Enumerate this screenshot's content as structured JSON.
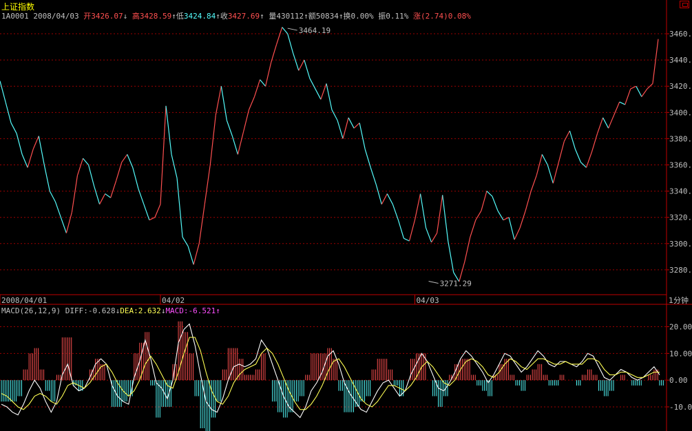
{
  "header": {
    "title": "上证指数",
    "code": "1A0001",
    "date": "2008/04/03",
    "open_label": "开",
    "open": "3426.07",
    "high_label": "高",
    "high": "3428.59",
    "low_label": "低",
    "low": "3424.84",
    "close_label": "收",
    "close": "3427.69",
    "vol_label": "量",
    "vol": "430112",
    "amt_label": "额",
    "amt": "50834",
    "turn_label": "换",
    "turn": "0.00%",
    "amp_label": "振",
    "amp": "0.11%",
    "chg_label": "涨",
    "chg": "(2.74)0.08%",
    "arrow_up": "↑",
    "arrow_down": "↓"
  },
  "period_button": "1分钟",
  "macd_header": {
    "label": "MACD(26,12,9)",
    "diff": "DIFF:-0.628",
    "diff_arrow": "↓",
    "dea": "DEA:2.632",
    "dea_arrow": "↓",
    "macd": "MACD:-6.521",
    "macd_arrow": "↑"
  },
  "colors": {
    "background": "#000000",
    "border": "#c00000",
    "grid": "#a00000",
    "up": "#ff5050",
    "down": "#54fcfc",
    "diff": "#ffffff",
    "dea": "#ffff54",
    "label": "#c0c0c0",
    "macd_label": "#ff50ff"
  },
  "chart_data": [
    {
      "type": "line",
      "title": "上证指数",
      "ylim": [
        3260,
        3470
      ],
      "y_ticks": [
        "3460.00",
        "3440.00",
        "3420.00",
        "3400.00",
        "3380.00",
        "3360.00",
        "3340.00",
        "3320.00",
        "3300.00",
        "3280.00"
      ],
      "y_tick_values": [
        3460,
        3440,
        3420,
        3400,
        3380,
        3360,
        3340,
        3320,
        3300,
        3280
      ],
      "x_labels": [
        "2008/04/01",
        "04/02",
        "04/03"
      ],
      "x_label_positions": [
        0,
        58,
        150
      ],
      "annotations": [
        {
          "text": "3464.19",
          "x": 104,
          "y": 3464.19
        },
        {
          "text": "3271.29",
          "x": 155,
          "y": 3271.29
        }
      ],
      "grid": true,
      "x": [
        0,
        2,
        4,
        6,
        8,
        10,
        12,
        14,
        16,
        18,
        20,
        22,
        24,
        26,
        28,
        30,
        32,
        34,
        36,
        38,
        40,
        42,
        44,
        46,
        48,
        50,
        52,
        54,
        56,
        58,
        60,
        62,
        64,
        66,
        68,
        70,
        72,
        74,
        76,
        78,
        80,
        82,
        84,
        86,
        88,
        90,
        92,
        94,
        96,
        98,
        100,
        102,
        104,
        106,
        108,
        110,
        112,
        114,
        116,
        118,
        120,
        122,
        124,
        126,
        128,
        130,
        132,
        134,
        136,
        138,
        140,
        142,
        144,
        146,
        148,
        150,
        152,
        154,
        156,
        158,
        160,
        162,
        164,
        166,
        168,
        170,
        172,
        174,
        176,
        178,
        180,
        182,
        184,
        186,
        188,
        190,
        192,
        194,
        196,
        198,
        200,
        202,
        204,
        206,
        208,
        210,
        212,
        214,
        216,
        218,
        220,
        222,
        224,
        226,
        228,
        230,
        232,
        234,
        236,
        238
      ],
      "y": [
        3424,
        3408,
        3392,
        3384,
        3368,
        3358,
        3372,
        3382,
        3360,
        3340,
        3332,
        3320,
        3308,
        3324,
        3352,
        3365,
        3360,
        3344,
        3330,
        3338,
        3335,
        3348,
        3362,
        3368,
        3358,
        3342,
        3330,
        3318,
        3320,
        3330,
        3405,
        3368,
        3350,
        3305,
        3298,
        3284,
        3300,
        3330,
        3360,
        3398,
        3420,
        3394,
        3382,
        3368,
        3385,
        3402,
        3412,
        3425,
        3420,
        3438,
        3452,
        3465,
        3460,
        3445,
        3432,
        3440,
        3426,
        3418,
        3410,
        3422,
        3402,
        3394,
        3380,
        3396,
        3388,
        3392,
        3372,
        3358,
        3345,
        3330,
        3338,
        3330,
        3318,
        3304,
        3302,
        3318,
        3338,
        3312,
        3301,
        3308,
        3337,
        3302,
        3278,
        3271,
        3286,
        3305,
        3318,
        3325,
        3340,
        3336,
        3325,
        3318,
        3320,
        3303,
        3312,
        3325,
        3340,
        3352,
        3368,
        3360,
        3346,
        3362,
        3378,
        3386,
        3372,
        3362,
        3358,
        3370,
        3384,
        3396,
        3388,
        3398,
        3408,
        3406,
        3418,
        3420,
        3412,
        3418,
        3422,
        3456
      ],
      "up_color": "#ff5050",
      "down_color": "#54fcfc"
    },
    {
      "type": "bar",
      "title": "MACD(26,12,9)",
      "ylim": [
        -18,
        24
      ],
      "y_ticks": [
        "20.00",
        "10.00",
        "0.00",
        "-10.00"
      ],
      "y_tick_values": [
        20,
        10,
        0,
        -10
      ],
      "series": [
        {
          "name": "DIFF",
          "type": "line",
          "color": "#ffffff",
          "values": [
            -9,
            -10,
            -12,
            -13,
            -9,
            -4,
            0,
            -3,
            -8,
            -12,
            -8,
            2,
            6,
            -2,
            -4,
            -3,
            1,
            6,
            8,
            6,
            -2,
            -6,
            -8,
            -9,
            1,
            7,
            15,
            8,
            -1,
            -3,
            -7,
            0,
            14,
            19,
            21,
            13,
            2,
            -8,
            -11,
            -12,
            -7,
            0,
            5,
            6,
            5,
            6,
            8,
            15,
            12,
            6,
            0,
            -6,
            -10,
            -12,
            -14,
            -10,
            -4,
            -1,
            3,
            9,
            11,
            6,
            -1,
            -5,
            -8,
            -11,
            -12,
            -8,
            -4,
            -1,
            0,
            -3,
            -6,
            -4,
            2,
            6,
            10,
            7,
            2,
            -3,
            -4,
            -1,
            3,
            8,
            11,
            9,
            6,
            3,
            -1,
            2,
            6,
            10,
            9,
            6,
            3,
            5,
            8,
            11,
            9,
            6,
            5,
            7,
            7,
            6,
            5,
            7,
            10,
            9,
            5,
            1,
            0,
            2,
            4,
            3,
            1,
            0,
            1,
            3,
            5,
            2
          ]
        },
        {
          "name": "DEA",
          "type": "line",
          "color": "#ffff54",
          "values": [
            -5,
            -6,
            -8,
            -10,
            -11,
            -9,
            -6,
            -5,
            -6,
            -8,
            -9,
            -6,
            -2,
            -1,
            -2,
            -3,
            -1,
            2,
            5,
            6,
            3,
            -1,
            -4,
            -6,
            -4,
            0,
            6,
            9,
            6,
            2,
            -2,
            -3,
            3,
            10,
            16,
            16,
            11,
            3,
            -4,
            -8,
            -9,
            -6,
            -1,
            2,
            4,
            5,
            6,
            10,
            12,
            10,
            6,
            1,
            -4,
            -8,
            -11,
            -11,
            -9,
            -6,
            -2,
            3,
            7,
            8,
            5,
            1,
            -3,
            -7,
            -9,
            -10,
            -8,
            -5,
            -2,
            -2,
            -3,
            -4,
            -2,
            1,
            5,
            7,
            5,
            2,
            -1,
            -2,
            0,
            4,
            7,
            8,
            7,
            5,
            2,
            1,
            3,
            6,
            8,
            7,
            5,
            4,
            6,
            8,
            8,
            7,
            6,
            6,
            7,
            6,
            6,
            6,
            8,
            8,
            7,
            4,
            2,
            2,
            3,
            3,
            2,
            1,
            1,
            2,
            3,
            3
          ]
        }
      ]
    }
  ]
}
